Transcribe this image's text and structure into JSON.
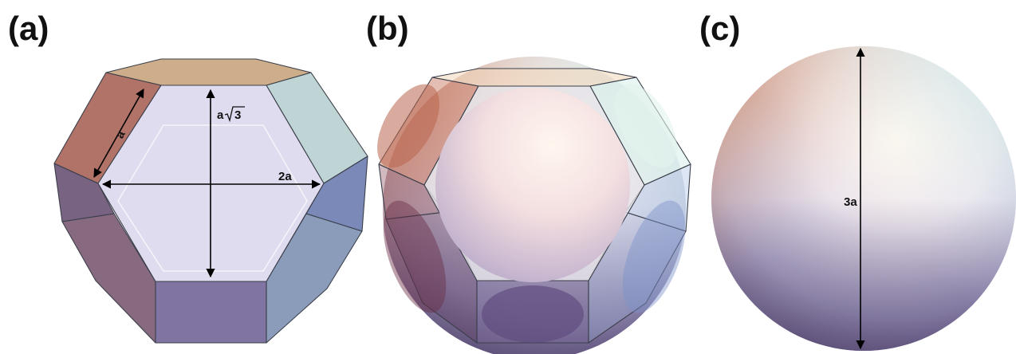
{
  "panels": [
    {
      "id": "a",
      "label": "(a)"
    },
    {
      "id": "b",
      "label": "(b)"
    },
    {
      "id": "c",
      "label": "(c)"
    }
  ],
  "dimensions": {
    "edge": "a",
    "height": "a√3",
    "height_base": "a",
    "height_root": "3",
    "width": "2a",
    "diameter": "3a"
  }
}
